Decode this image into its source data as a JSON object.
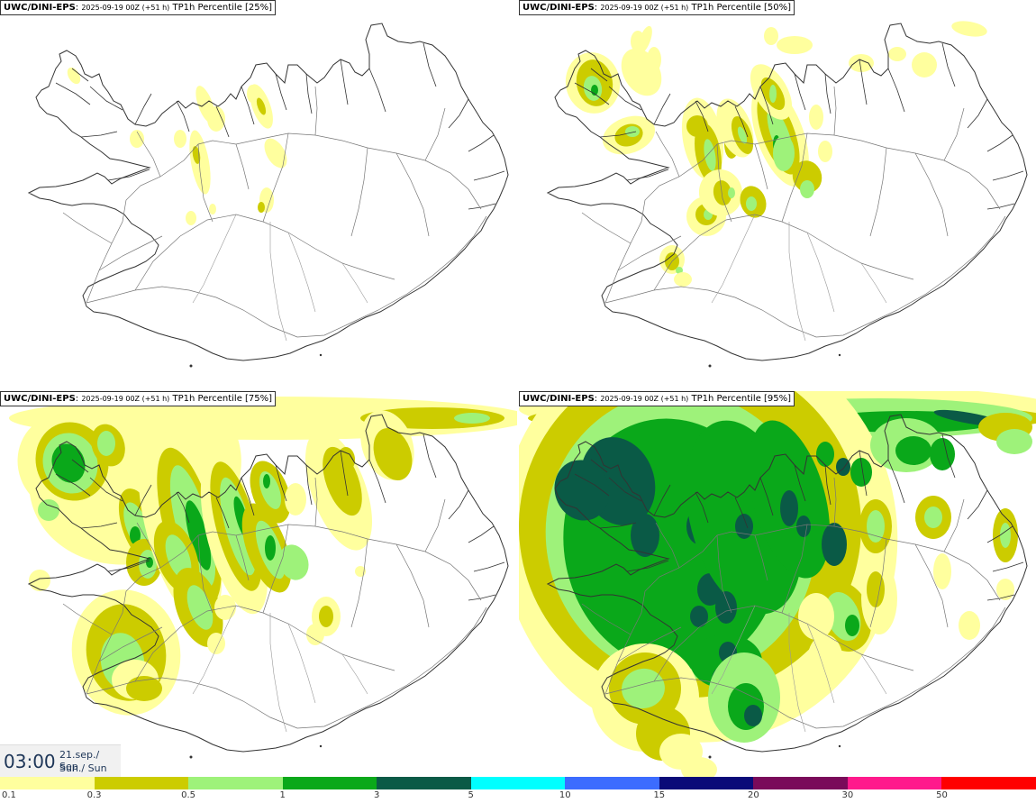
{
  "panels": [
    {
      "model": "UWC/DINI-EPS",
      "run": "2025-09-19 00Z (+51 h)",
      "param": "TP1h Percentile [25%]",
      "level": 1
    },
    {
      "model": "UWC/DINI-EPS",
      "run": "2025-09-19 00Z (+51 h)",
      "param": "TP1h Percentile [50%]",
      "level": 2
    },
    {
      "model": "UWC/DINI-EPS",
      "run": "2025-09-19 00Z (+51 h)",
      "param": "TP1h Percentile [75%]",
      "level": 3
    },
    {
      "model": "UWC/DINI-EPS",
      "run": "2025-09-19 00Z (+51 h)",
      "param": "TP1h Percentile [95%]",
      "level": 4
    }
  ],
  "valid_time": {
    "hour": "03:00",
    "date": "21.sep./ Sep",
    "day": "Sun./ Sun"
  },
  "legend": {
    "colors": [
      "#ffff9e",
      "#cccc00",
      "#9ef27a",
      "#0aa81a",
      "#0a5a46",
      "#00ffff",
      "#3c6cff",
      "#0a0a78",
      "#7a0a5a",
      "#ff1a8c",
      "#ff0000"
    ],
    "labels": [
      "0.1",
      "0.3",
      "0.5",
      "1",
      "3",
      "5",
      "10",
      "15",
      "20",
      "30",
      "50"
    ]
  }
}
